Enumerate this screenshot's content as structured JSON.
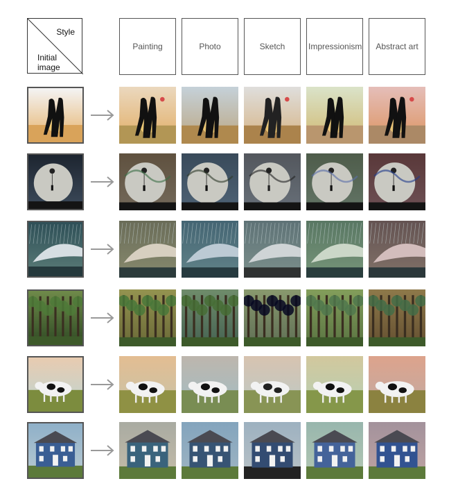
{
  "header": {
    "corner_style_label": "Style",
    "corner_initial_line1": "Initial",
    "corner_initial_line2": "image",
    "styles": [
      "Painting",
      "Photo",
      "Sketch",
      "Impressionism",
      "Abstract art"
    ]
  },
  "rows": [
    {
      "subject": "couple-silhouette-sunset",
      "colors": {
        "sky_top": "#f4f4f4",
        "sky_bottom": "#e6b26a",
        "ground": "#d9a35a",
        "figure": "#111111"
      }
    },
    {
      "subject": "moon-balloons",
      "colors": {
        "sky_top": "#1d2530",
        "sky_bottom": "#3c4a5a",
        "moon": "#c9c9c2",
        "figure": "#111111"
      }
    },
    {
      "subject": "umbrella-in-rain",
      "colors": {
        "sky_top": "#2e4f57",
        "sky_bottom": "#5b7d78",
        "umbrella": "#d6dee2",
        "figure": "#1c2e32"
      }
    },
    {
      "subject": "forest",
      "colors": {
        "sky_top": "#6f8a4a",
        "sky_bottom": "#2f4a24",
        "trunk": "#3a2e20",
        "figure": "#4d7a38"
      }
    },
    {
      "subject": "cow-in-field",
      "colors": {
        "sky_top": "#e8cbb0",
        "sky_bottom": "#bcd6d4",
        "ground": "#7c8c3e",
        "figure": "#111111"
      }
    },
    {
      "subject": "blue-house",
      "colors": {
        "sky_top": "#8fb0c8",
        "sky_bottom": "#b9cad2",
        "house": "#3a5e94",
        "figure": "#5c7a3a"
      }
    }
  ],
  "styled_variants": [
    {
      "name": "Painting",
      "tint": "#d9a35a",
      "accent": "#3b6e44"
    },
    {
      "name": "Photo",
      "tint": "#6e8fa8",
      "accent": "#2f3b2a"
    },
    {
      "name": "Sketch",
      "tint": "#b8b4b0",
      "accent": "#222222"
    },
    {
      "name": "Impressionism",
      "tint": "#a9c27a",
      "accent": "#5a6ea8"
    },
    {
      "name": "Abstract art",
      "tint": "#c85a4a",
      "accent": "#1f3a8a"
    }
  ]
}
